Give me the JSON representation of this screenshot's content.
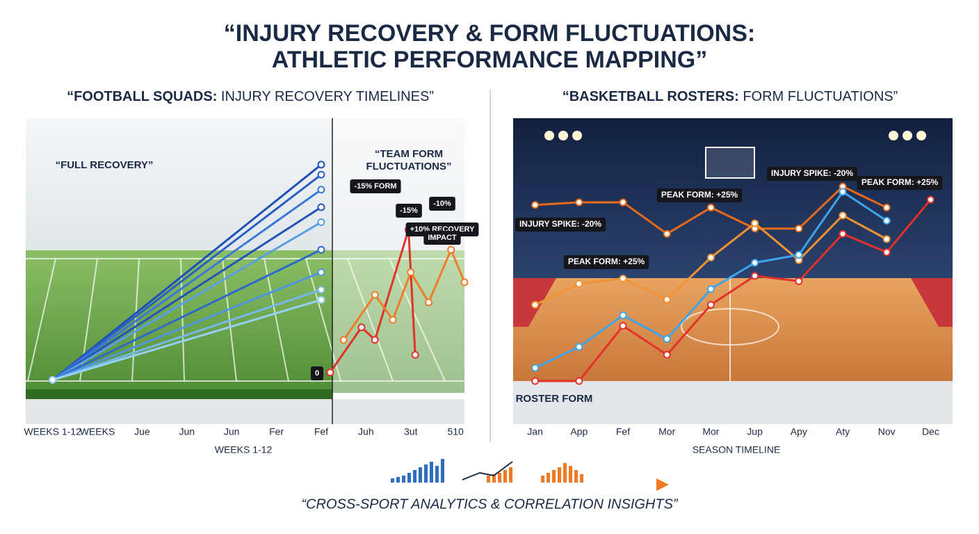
{
  "title": [
    "“INJURY RECOVERY & FORM FLUCTUATIONS:",
    "ATHLETIC PERFORMANCE MAPPING”"
  ],
  "caption": "“CROSS-SPORT ANALYTICS & CORRELATION INSIGHTS”",
  "chart_data": [
    {
      "type": "line",
      "title": [
        "“FOOTBALL SQUADS:",
        "INJURY RECOVERY TIMELINES”"
      ],
      "xlabel": "WEEKS 1-12",
      "xlim": [
        -0.6,
        9.2
      ],
      "ylim": [
        0,
        100
      ],
      "xticks": [
        {
          "value": 0,
          "label": "WEEKS 1-12"
        },
        {
          "value": 1,
          "label": "WEEKS"
        },
        {
          "value": 2,
          "label": "Jue"
        },
        {
          "value": 3,
          "label": "Jun"
        },
        {
          "value": 4,
          "label": "Jun"
        },
        {
          "value": 5,
          "label": "Fer"
        },
        {
          "value": 6,
          "label": "Fef"
        },
        {
          "value": 7,
          "label": "Juh"
        },
        {
          "value": 8,
          "label": "3ut"
        },
        {
          "value": 9,
          "label": "510"
        }
      ],
      "series": [
        {
          "color": "#1d4fb8",
          "x": [
            0,
            6
          ],
          "values": [
            1,
            87
          ]
        },
        {
          "color": "#2a5fc4",
          "x": [
            0,
            6
          ],
          "values": [
            1,
            83
          ]
        },
        {
          "color": "#3b78d6",
          "x": [
            0,
            6
          ],
          "values": [
            1,
            77
          ]
        },
        {
          "color": "#2354b8",
          "x": [
            0,
            6
          ],
          "values": [
            1,
            70
          ]
        },
        {
          "color": "#5a9ee4",
          "x": [
            0,
            6
          ],
          "values": [
            1,
            64
          ]
        },
        {
          "color": "#2e68c8",
          "x": [
            0,
            6
          ],
          "values": [
            1,
            53
          ]
        },
        {
          "color": "#4f95e0",
          "x": [
            0,
            6
          ],
          "values": [
            1,
            44
          ]
        },
        {
          "color": "#74b8ee",
          "x": [
            0,
            6
          ],
          "values": [
            1,
            37
          ]
        },
        {
          "color": "#96d0f5",
          "x": [
            0,
            6
          ],
          "values": [
            1,
            33
          ]
        },
        {
          "color": "#e0322b",
          "x": [
            6.2,
            6.9,
            7.2,
            7.95,
            8.1
          ],
          "values": [
            4,
            22,
            17,
            61,
            11
          ]
        },
        {
          "color": "#f07c2a",
          "x": [
            6.5,
            7.2,
            7.6,
            8.0,
            8.4,
            8.9,
            9.2
          ],
          "values": [
            17,
            35,
            25,
            44,
            32,
            53,
            40
          ]
        }
      ],
      "annotations": [
        "“FULL RECOVERY”",
        "“TEAM FORM",
        "FLUCTUATIONS”",
        "-15% FORM",
        "-15%",
        "-10%",
        "+10% RECOVERY",
        "IMPACT",
        "0"
      ]
    },
    {
      "type": "line",
      "title": [
        "“BASKETBALL ROSTERS:",
        "FORM FLUCTUATIONS”"
      ],
      "xlabel": "SEASON TIMELINE",
      "categories": [
        "Jan",
        "App",
        "Fef",
        "Mor",
        "Mor",
        "Jup",
        "Apy",
        "Aty",
        "Nov",
        "Dec"
      ],
      "ylim": [
        0,
        100
      ],
      "series": [
        {
          "color": "#e86a1c",
          "values": [
            67,
            68,
            68,
            56,
            66,
            58,
            58,
            74,
            66,
            null
          ]
        },
        {
          "color": "#f29233",
          "values": [
            29,
            37,
            39,
            31,
            47,
            60,
            46,
            63,
            54,
            null
          ]
        },
        {
          "color": "#3ea4ec",
          "values": [
            5,
            13,
            25,
            16,
            35,
            45,
            48,
            72,
            61,
            null
          ]
        },
        {
          "color": "#e2312b",
          "values": [
            0,
            0,
            21,
            10,
            29,
            40,
            38,
            56,
            49,
            69
          ]
        }
      ],
      "annotations": [
        "INJURY SPIKE: -20%",
        "PEAK FORM: +25%",
        "PEAK FORM: +25%",
        "INJURY SPIKE: -20%",
        "PEAK FORM: +25%",
        "ROSTER FORM"
      ]
    }
  ]
}
